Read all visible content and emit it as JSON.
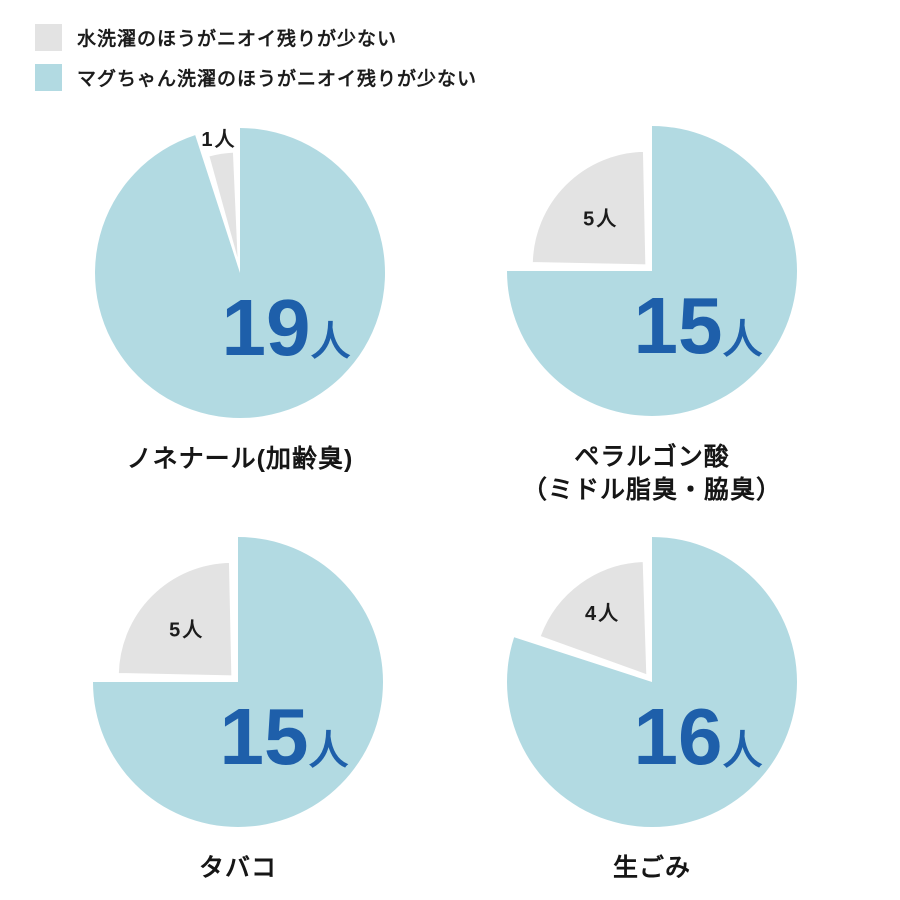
{
  "colors": {
    "magchan": "#b2dae2",
    "water": "#e3e3e3",
    "number": "#1e5faa",
    "text": "#1c1c1c"
  },
  "legend": {
    "items": [
      {
        "key": "water",
        "label": "水洗濯のほうがニオイ残りが少ない",
        "color": "#e3e3e3"
      },
      {
        "key": "magchan",
        "label": "マグちゃん洗濯のほうがニオイ残りが少ない",
        "color": "#b2dae2"
      }
    ]
  },
  "chart_data": [
    {
      "type": "pie",
      "title": "ノネナール(加齢臭)",
      "unit": "人",
      "total": 20,
      "slices": [
        {
          "name": "マグちゃん洗濯のほうがニオイ残りが少ない",
          "value": 19,
          "label": "19人",
          "color": "#b2dae2"
        },
        {
          "name": "水洗濯のほうがニオイ残りが少ない",
          "value": 1,
          "label": "1人",
          "color": "#e3e3e3"
        }
      ]
    },
    {
      "type": "pie",
      "title": "ペラルゴン酸\n（ミドル脂臭・脇臭）",
      "unit": "人",
      "total": 20,
      "slices": [
        {
          "name": "マグちゃん洗濯のほうがニオイ残りが少ない",
          "value": 15,
          "label": "15人",
          "color": "#b2dae2"
        },
        {
          "name": "水洗濯のほうがニオイ残りが少ない",
          "value": 5,
          "label": "5人",
          "color": "#e3e3e3"
        }
      ]
    },
    {
      "type": "pie",
      "title": "タバコ",
      "unit": "人",
      "total": 20,
      "slices": [
        {
          "name": "マグちゃん洗濯のほうがニオイ残りが少ない",
          "value": 15,
          "label": "15人",
          "color": "#b2dae2"
        },
        {
          "name": "水洗濯のほうがニオイ残りが少ない",
          "value": 5,
          "label": "5人",
          "color": "#e3e3e3"
        }
      ]
    },
    {
      "type": "pie",
      "title": "生ごみ",
      "unit": "人",
      "total": 20,
      "slices": [
        {
          "name": "マグちゃん洗濯のほうがニオイ残りが少ない",
          "value": 16,
          "label": "16人",
          "color": "#b2dae2"
        },
        {
          "name": "水洗濯のほうがニオイ残りが少ない",
          "value": 4,
          "label": "4人",
          "color": "#e3e3e3"
        }
      ]
    }
  ]
}
